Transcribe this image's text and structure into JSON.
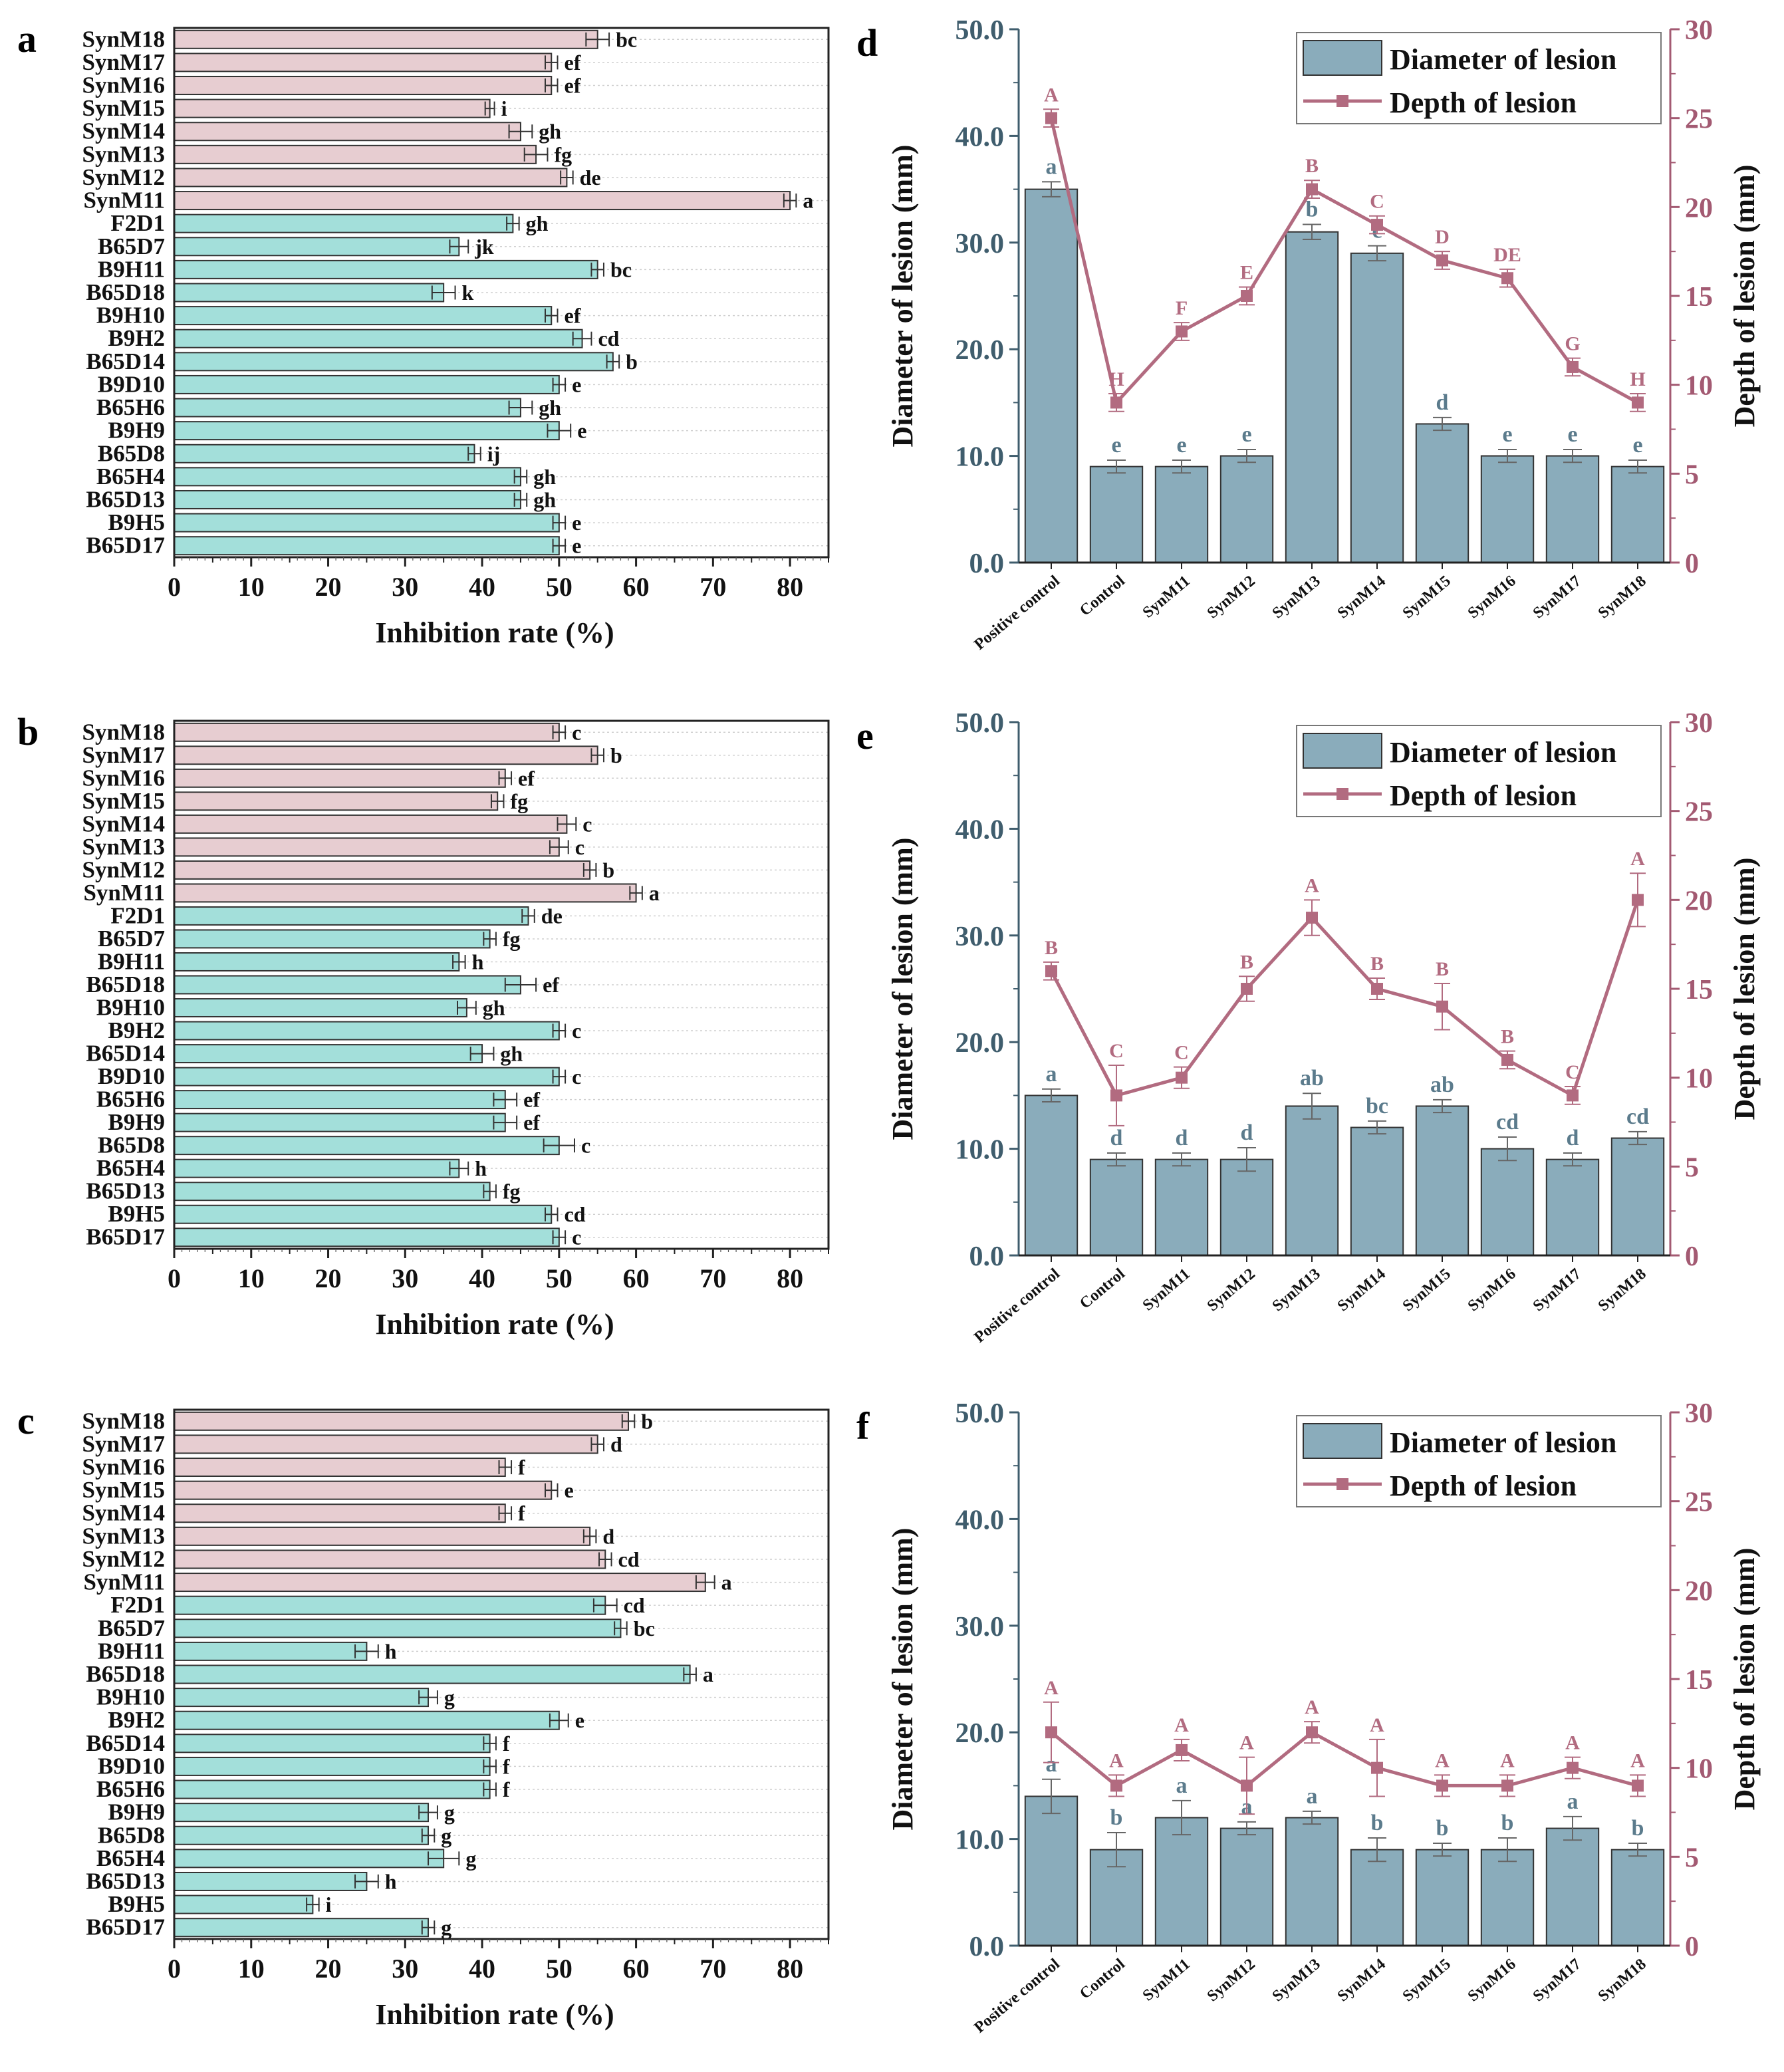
{
  "figure": {
    "panels": [
      "a",
      "b",
      "c",
      "d",
      "e",
      "f"
    ]
  },
  "colors": {
    "synm_bar": "#e7cdd1",
    "strain_bar": "#a3dfda",
    "lesion_bar": "#8aacbb",
    "depth_line": "#b26b80",
    "diameter_letter": "#5b7b8c",
    "depth_axis": "#a35a72",
    "bar_edge": "#333333"
  },
  "chart_data": [
    {
      "panel": "a",
      "type": "bar",
      "orientation": "horizontal",
      "xlabel": "Inhibition rate (%)",
      "xlim": [
        0,
        85
      ],
      "xticks": [
        0,
        10,
        20,
        30,
        40,
        50,
        60,
        70,
        80
      ],
      "categories": [
        "SynM18",
        "SynM17",
        "SynM16",
        "SynM15",
        "SynM14",
        "SynM13",
        "SynM12",
        "SynM11",
        "F2D1",
        "B65D7",
        "B9H11",
        "B65D18",
        "B9H10",
        "B9H2",
        "B65D14",
        "B9D10",
        "B65H6",
        "B9H9",
        "B65D8",
        "B65H4",
        "B65D13",
        "B9H5",
        "B65D17"
      ],
      "values": [
        55,
        49,
        49,
        41,
        45,
        47,
        51,
        80,
        44,
        37,
        55,
        35,
        49,
        53,
        57,
        50,
        45,
        50,
        39,
        45,
        45,
        50,
        50
      ],
      "errors": [
        1.5,
        0.8,
        0.8,
        0.6,
        1.5,
        1.5,
        0.8,
        0.8,
        0.8,
        1.2,
        0.8,
        1.5,
        0.8,
        1.2,
        0.8,
        0.8,
        1.5,
        1.5,
        0.8,
        0.8,
        0.8,
        0.8,
        0.8
      ],
      "letters": [
        "bc",
        "ef",
        "ef",
        "i",
        "gh",
        "fg",
        "de",
        "a",
        "gh",
        "jk",
        "bc",
        "k",
        "ef",
        "cd",
        "b",
        "e",
        "gh",
        "e",
        "ij",
        "gh",
        "gh",
        "e",
        "e"
      ]
    },
    {
      "panel": "b",
      "type": "bar",
      "orientation": "horizontal",
      "xlabel": "Inhibition rate (%)",
      "xlim": [
        0,
        85
      ],
      "xticks": [
        0,
        10,
        20,
        30,
        40,
        50,
        60,
        70,
        80
      ],
      "categories": [
        "SynM18",
        "SynM17",
        "SynM16",
        "SynM15",
        "SynM14",
        "SynM13",
        "SynM12",
        "SynM11",
        "F2D1",
        "B65D7",
        "B9H11",
        "B65D18",
        "B9H10",
        "B9H2",
        "B65D14",
        "B9D10",
        "B65H6",
        "B9H9",
        "B65D8",
        "B65H4",
        "B65D13",
        "B9H5",
        "B65D17"
      ],
      "values": [
        50,
        55,
        43,
        42,
        51,
        50,
        54,
        60,
        46,
        41,
        37,
        45,
        38,
        50,
        40,
        50,
        43,
        43,
        50,
        37,
        41,
        49,
        50
      ],
      "errors": [
        0.8,
        0.8,
        0.8,
        0.8,
        1.2,
        1.2,
        0.8,
        0.8,
        0.8,
        0.8,
        0.8,
        2.0,
        1.2,
        0.8,
        1.5,
        0.8,
        1.5,
        1.5,
        2.0,
        1.2,
        0.8,
        0.8,
        0.8
      ],
      "letters": [
        "c",
        "b",
        "ef",
        "fg",
        "c",
        "c",
        "b",
        "a",
        "de",
        "fg",
        "h",
        "ef",
        "gh",
        "c",
        "gh",
        "c",
        "ef",
        "ef",
        "c",
        "h",
        "fg",
        "cd",
        "c"
      ]
    },
    {
      "panel": "c",
      "type": "bar",
      "orientation": "horizontal",
      "xlabel": "Inhibition rate (%)",
      "xlim": [
        0,
        85
      ],
      "xticks": [
        0,
        10,
        20,
        30,
        40,
        50,
        60,
        70,
        80
      ],
      "categories": [
        "SynM18",
        "SynM17",
        "SynM16",
        "SynM15",
        "SynM14",
        "SynM13",
        "SynM12",
        "SynM11",
        "F2D1",
        "B65D7",
        "B9H11",
        "B65D18",
        "B9H10",
        "B9H2",
        "B65D14",
        "B9D10",
        "B65H6",
        "B9H9",
        "B65D8",
        "B65H4",
        "B65D13",
        "B9H5",
        "B65D17"
      ],
      "values": [
        59,
        55,
        43,
        49,
        43,
        54,
        56,
        69,
        56,
        58,
        25,
        67,
        33,
        50,
        41,
        41,
        41,
        33,
        33,
        35,
        25,
        18,
        33
      ],
      "errors": [
        0.8,
        0.8,
        0.8,
        0.8,
        0.8,
        0.8,
        0.8,
        1.2,
        1.5,
        0.8,
        1.5,
        0.8,
        1.2,
        1.2,
        0.8,
        0.8,
        0.8,
        1.2,
        0.8,
        2.0,
        1.5,
        0.8,
        0.8
      ],
      "letters": [
        "b",
        "d",
        "f",
        "e",
        "f",
        "d",
        "cd",
        "a",
        "cd",
        "bc",
        "h",
        "a",
        "g",
        "e",
        "f",
        "f",
        "f",
        "g",
        "g",
        "g",
        "h",
        "i",
        "g"
      ]
    },
    {
      "panel": "d",
      "type": "bar+line",
      "categories": [
        "Positive control",
        "Control",
        "SynM11",
        "SynM12",
        "SynM13",
        "SynM14",
        "SynM15",
        "SynM16",
        "SynM17",
        "SynM18"
      ],
      "ylabel": "Diameter of lesion (mm)",
      "y2label": "Depth of lesion (mm)",
      "ylim": [
        0,
        50
      ],
      "y2lim": [
        0,
        30
      ],
      "yticks": [
        "0.0",
        "10.0",
        "20.0",
        "30.0",
        "40.0",
        "50.0"
      ],
      "y2ticks": [
        "0",
        "5",
        "10",
        "15",
        "20",
        "25",
        "30"
      ],
      "series": [
        {
          "name": "Diameter of lesion",
          "kind": "bar",
          "values": [
            35,
            9,
            9,
            10,
            31,
            29,
            13,
            10,
            10,
            9
          ],
          "errors": [
            0.7,
            0.6,
            0.6,
            0.6,
            0.7,
            0.7,
            0.6,
            0.6,
            0.6,
            0.6
          ],
          "letters": [
            "a",
            "e",
            "e",
            "e",
            "b",
            "c",
            "d",
            "e",
            "e",
            "e"
          ]
        },
        {
          "name": "Depth of lesion",
          "kind": "line",
          "values": [
            25,
            9,
            13,
            15,
            21,
            19,
            17,
            16,
            11,
            9
          ],
          "errors": [
            0.5,
            0.5,
            0.5,
            0.5,
            0.5,
            0.5,
            0.5,
            0.5,
            0.5,
            0.5
          ],
          "letters": [
            "A",
            "H",
            "F",
            "E",
            "B",
            "C",
            "D",
            "DE",
            "G",
            "H"
          ]
        }
      ],
      "legend": "top-right"
    },
    {
      "panel": "e",
      "type": "bar+line",
      "categories": [
        "Positive control",
        "Control",
        "SynM11",
        "SynM12",
        "SynM13",
        "SynM14",
        "SynM15",
        "SynM16",
        "SynM17",
        "SynM18"
      ],
      "ylabel": "Diameter of lesion (mm)",
      "y2label": "Depth of lesion (mm)",
      "ylim": [
        0,
        50
      ],
      "y2lim": [
        0,
        30
      ],
      "yticks": [
        "0.0",
        "10.0",
        "20.0",
        "30.0",
        "40.0",
        "50.0"
      ],
      "y2ticks": [
        "0",
        "5",
        "10",
        "15",
        "20",
        "25",
        "30"
      ],
      "series": [
        {
          "name": "Diameter of lesion",
          "kind": "bar",
          "values": [
            15,
            9,
            9,
            9,
            14,
            12,
            14,
            10,
            9,
            11
          ],
          "errors": [
            0.6,
            0.6,
            0.6,
            1.1,
            1.2,
            0.6,
            0.6,
            1.1,
            0.6,
            0.6
          ],
          "letters": [
            "a",
            "d",
            "d",
            "d",
            "ab",
            "bc",
            "ab",
            "cd",
            "d",
            "cd"
          ]
        },
        {
          "name": "Depth of lesion",
          "kind": "line",
          "values": [
            16,
            9,
            10,
            15,
            19,
            15,
            14,
            11,
            9,
            20
          ],
          "errors": [
            0.5,
            1.7,
            0.6,
            0.7,
            1.0,
            0.6,
            1.3,
            0.5,
            0.5,
            1.5
          ],
          "letters": [
            "B",
            "C",
            "C",
            "B",
            "A",
            "B",
            "B",
            "B",
            "C",
            "A"
          ]
        }
      ],
      "legend": "top-right"
    },
    {
      "panel": "f",
      "type": "bar+line",
      "categories": [
        "Positive control",
        "Control",
        "SynM11",
        "SynM12",
        "SynM13",
        "SynM14",
        "SynM15",
        "SynM16",
        "SynM17",
        "SynM18"
      ],
      "ylabel": "Diameter of lesion (mm)",
      "y2label": "Depth of lesion (mm)",
      "ylim": [
        0,
        50
      ],
      "y2lim": [
        0,
        30
      ],
      "yticks": [
        "0.0",
        "10.0",
        "20.0",
        "30.0",
        "40.0",
        "50.0"
      ],
      "y2ticks": [
        "0",
        "5",
        "10",
        "15",
        "20",
        "25",
        "30"
      ],
      "series": [
        {
          "name": "Diameter of lesion",
          "kind": "bar",
          "values": [
            14,
            9,
            12,
            11,
            12,
            9,
            9,
            9,
            11,
            9
          ],
          "errors": [
            1.6,
            1.6,
            1.6,
            0.6,
            0.6,
            1.1,
            0.6,
            1.1,
            1.1,
            0.6
          ],
          "letters": [
            "a",
            "b",
            "a",
            "a",
            "a",
            "b",
            "b",
            "b",
            "a",
            "b"
          ]
        },
        {
          "name": "Depth of lesion",
          "kind": "line",
          "values": [
            12,
            9,
            11,
            9,
            12,
            10,
            9,
            9,
            10,
            9
          ],
          "errors": [
            1.7,
            0.6,
            0.6,
            1.6,
            0.6,
            1.6,
            0.6,
            0.6,
            0.6,
            0.6
          ],
          "letters": [
            "A",
            "A",
            "A",
            "A",
            "A",
            "A",
            "A",
            "A",
            "A",
            "A"
          ]
        }
      ],
      "legend": "top-right"
    }
  ]
}
